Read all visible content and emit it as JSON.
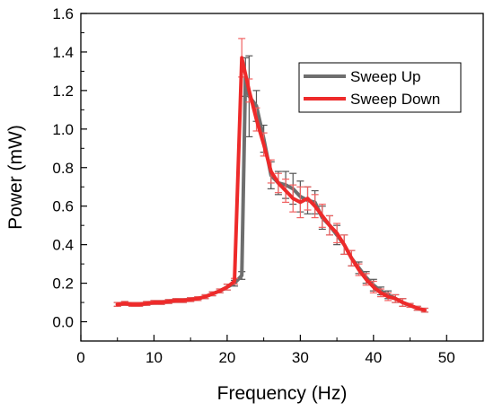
{
  "chart_data": {
    "type": "line",
    "xlabel": "Frequency (Hz)",
    "ylabel": "Power (mW)",
    "xlim": [
      0,
      55
    ],
    "ylim": [
      -0.1,
      1.6
    ],
    "xticks": [
      0,
      10,
      20,
      30,
      40,
      50
    ],
    "yticks": [
      0.0,
      0.2,
      0.4,
      0.6,
      0.8,
      1.0,
      1.2,
      1.4,
      1.6
    ],
    "xtick_labels": [
      "0",
      "10",
      "20",
      "30",
      "40",
      "50"
    ],
    "ytick_labels": [
      "0.0",
      "0.2",
      "0.4",
      "0.6",
      "0.8",
      "1.0",
      "1.2",
      "1.4",
      "1.6"
    ],
    "legend_position": "top-right",
    "grid": false,
    "series": [
      {
        "name": "Sweep Up",
        "color": "#6e6e6e",
        "points": [
          {
            "x": 5,
            "y": 0.09,
            "err": 0.01
          },
          {
            "x": 6,
            "y": 0.095,
            "err": 0.01
          },
          {
            "x": 7,
            "y": 0.09,
            "err": 0.01
          },
          {
            "x": 8,
            "y": 0.09,
            "err": 0.01
          },
          {
            "x": 9,
            "y": 0.095,
            "err": 0.01
          },
          {
            "x": 10,
            "y": 0.1,
            "err": 0.01
          },
          {
            "x": 11,
            "y": 0.1,
            "err": 0.01
          },
          {
            "x": 12,
            "y": 0.105,
            "err": 0.01
          },
          {
            "x": 13,
            "y": 0.11,
            "err": 0.01
          },
          {
            "x": 14,
            "y": 0.11,
            "err": 0.01
          },
          {
            "x": 15,
            "y": 0.115,
            "err": 0.01
          },
          {
            "x": 16,
            "y": 0.12,
            "err": 0.01
          },
          {
            "x": 17,
            "y": 0.13,
            "err": 0.01
          },
          {
            "x": 18,
            "y": 0.145,
            "err": 0.01
          },
          {
            "x": 19,
            "y": 0.16,
            "err": 0.01
          },
          {
            "x": 20,
            "y": 0.18,
            "err": 0.015
          },
          {
            "x": 21,
            "y": 0.2,
            "err": 0.015
          },
          {
            "x": 22,
            "y": 0.24,
            "err": 0.02
          },
          {
            "x": 22.5,
            "y": 1.27,
            "err": 0.1
          },
          {
            "x": 23,
            "y": 1.17,
            "err": 0.21
          },
          {
            "x": 24,
            "y": 1.12,
            "err": 0.08
          },
          {
            "x": 25,
            "y": 0.95,
            "err": 0.07
          },
          {
            "x": 26,
            "y": 0.76,
            "err": 0.07
          },
          {
            "x": 27,
            "y": 0.72,
            "err": 0.06
          },
          {
            "x": 28,
            "y": 0.71,
            "err": 0.07
          },
          {
            "x": 29,
            "y": 0.69,
            "err": 0.08
          },
          {
            "x": 30,
            "y": 0.65,
            "err": 0.08
          },
          {
            "x": 31,
            "y": 0.63,
            "err": 0.07
          },
          {
            "x": 32,
            "y": 0.62,
            "err": 0.06
          },
          {
            "x": 33,
            "y": 0.54,
            "err": 0.06
          },
          {
            "x": 34,
            "y": 0.5,
            "err": 0.05
          },
          {
            "x": 35,
            "y": 0.45,
            "err": 0.05
          },
          {
            "x": 36,
            "y": 0.4,
            "err": 0.05
          },
          {
            "x": 37,
            "y": 0.33,
            "err": 0.04
          },
          {
            "x": 38,
            "y": 0.28,
            "err": 0.03
          },
          {
            "x": 39,
            "y": 0.23,
            "err": 0.03
          },
          {
            "x": 40,
            "y": 0.19,
            "err": 0.03
          },
          {
            "x": 41,
            "y": 0.16,
            "err": 0.02
          },
          {
            "x": 42,
            "y": 0.14,
            "err": 0.02
          },
          {
            "x": 43,
            "y": 0.12,
            "err": 0.02
          },
          {
            "x": 44,
            "y": 0.1,
            "err": 0.02
          },
          {
            "x": 45,
            "y": 0.085,
            "err": 0.01
          },
          {
            "x": 46,
            "y": 0.07,
            "err": 0.01
          },
          {
            "x": 47,
            "y": 0.06,
            "err": 0.01
          }
        ]
      },
      {
        "name": "Sweep Down",
        "color": "#ee2a2a",
        "points": [
          {
            "x": 5,
            "y": 0.09,
            "err": 0.01
          },
          {
            "x": 6,
            "y": 0.095,
            "err": 0.01
          },
          {
            "x": 7,
            "y": 0.09,
            "err": 0.01
          },
          {
            "x": 8,
            "y": 0.09,
            "err": 0.01
          },
          {
            "x": 9,
            "y": 0.095,
            "err": 0.01
          },
          {
            "x": 10,
            "y": 0.1,
            "err": 0.01
          },
          {
            "x": 11,
            "y": 0.1,
            "err": 0.01
          },
          {
            "x": 12,
            "y": 0.105,
            "err": 0.01
          },
          {
            "x": 13,
            "y": 0.11,
            "err": 0.01
          },
          {
            "x": 14,
            "y": 0.11,
            "err": 0.01
          },
          {
            "x": 15,
            "y": 0.115,
            "err": 0.01
          },
          {
            "x": 16,
            "y": 0.12,
            "err": 0.01
          },
          {
            "x": 17,
            "y": 0.13,
            "err": 0.01
          },
          {
            "x": 18,
            "y": 0.145,
            "err": 0.01
          },
          {
            "x": 19,
            "y": 0.16,
            "err": 0.01
          },
          {
            "x": 20,
            "y": 0.18,
            "err": 0.015
          },
          {
            "x": 21,
            "y": 0.21,
            "err": 0.015
          },
          {
            "x": 22,
            "y": 1.37,
            "err": 0.1
          },
          {
            "x": 23,
            "y": 1.2,
            "err": 0.06
          },
          {
            "x": 24,
            "y": 1.05,
            "err": 0.06
          },
          {
            "x": 25,
            "y": 0.92,
            "err": 0.06
          },
          {
            "x": 26,
            "y": 0.78,
            "err": 0.06
          },
          {
            "x": 27,
            "y": 0.72,
            "err": 0.05
          },
          {
            "x": 28,
            "y": 0.68,
            "err": 0.06
          },
          {
            "x": 29,
            "y": 0.64,
            "err": 0.07
          },
          {
            "x": 30,
            "y": 0.62,
            "err": 0.08
          },
          {
            "x": 31,
            "y": 0.64,
            "err": 0.06
          },
          {
            "x": 32,
            "y": 0.6,
            "err": 0.06
          },
          {
            "x": 33,
            "y": 0.55,
            "err": 0.06
          },
          {
            "x": 34,
            "y": 0.5,
            "err": 0.05
          },
          {
            "x": 35,
            "y": 0.46,
            "err": 0.05
          },
          {
            "x": 36,
            "y": 0.4,
            "err": 0.05
          },
          {
            "x": 37,
            "y": 0.33,
            "err": 0.04
          },
          {
            "x": 38,
            "y": 0.27,
            "err": 0.03
          },
          {
            "x": 39,
            "y": 0.22,
            "err": 0.03
          },
          {
            "x": 40,
            "y": 0.18,
            "err": 0.03
          },
          {
            "x": 41,
            "y": 0.15,
            "err": 0.02
          },
          {
            "x": 42,
            "y": 0.13,
            "err": 0.02
          },
          {
            "x": 43,
            "y": 0.12,
            "err": 0.02
          },
          {
            "x": 44,
            "y": 0.1,
            "err": 0.02
          },
          {
            "x": 45,
            "y": 0.085,
            "err": 0.01
          },
          {
            "x": 46,
            "y": 0.07,
            "err": 0.01
          },
          {
            "x": 47,
            "y": 0.06,
            "err": 0.01
          }
        ]
      }
    ]
  }
}
